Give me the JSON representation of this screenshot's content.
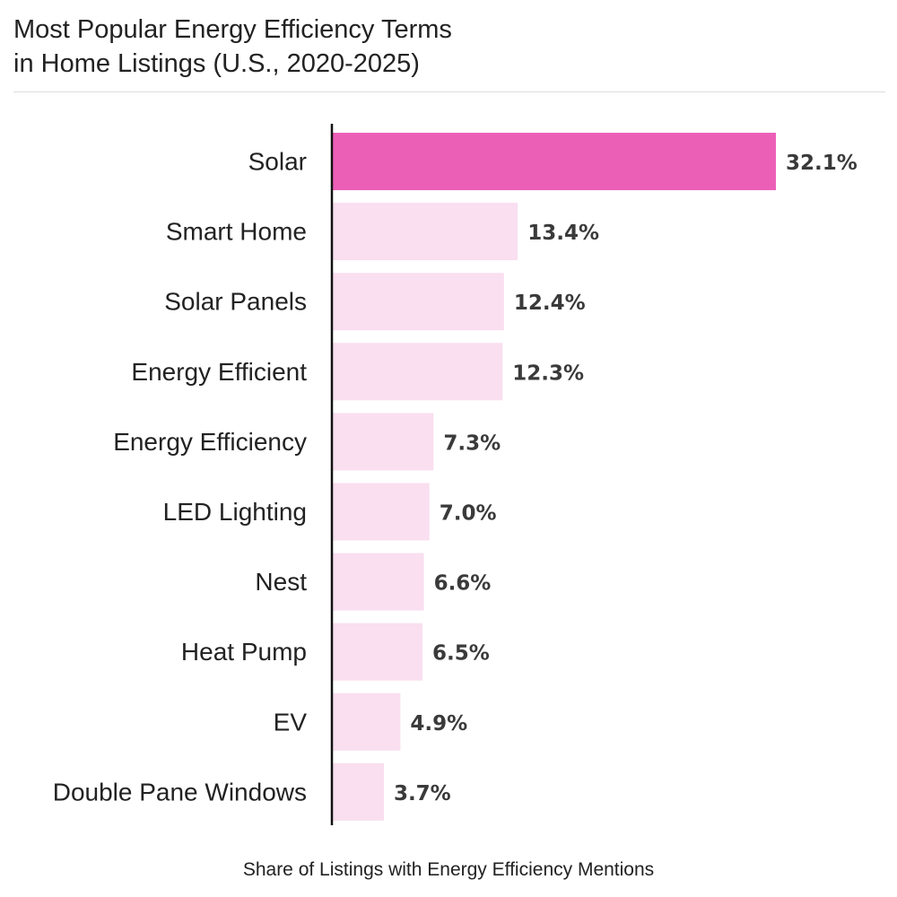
{
  "chart_data": {
    "type": "bar",
    "orientation": "horizontal",
    "title_lines": [
      "Most Popular Energy Efficiency Terms",
      "in Home Listings (U.S., 2020-2025)"
    ],
    "xlabel": "Share of Listings with Energy Efficiency Mentions",
    "ylabel": "",
    "categories": [
      "Solar",
      "Smart Home",
      "Solar Panels",
      "Energy Efficient",
      "Energy Efficiency",
      "LED Lighting",
      "Nest",
      "Heat Pump",
      "EV",
      "Double Pane Windows"
    ],
    "values": [
      32.1,
      13.4,
      12.4,
      12.3,
      7.3,
      7.0,
      6.6,
      6.5,
      4.9,
      3.7
    ],
    "value_labels": [
      "32.1%",
      "13.4%",
      "12.4%",
      "12.3%",
      "7.3%",
      "7.0%",
      "6.6%",
      "6.5%",
      "4.9%",
      "3.7%"
    ],
    "xlim": [
      0,
      32.1
    ],
    "grid": false,
    "legend": "none",
    "colors": {
      "highlight": "#ec5fb7",
      "default": "#f9dff0",
      "axis": "#111111",
      "value_text": "#3a3a3a"
    }
  }
}
